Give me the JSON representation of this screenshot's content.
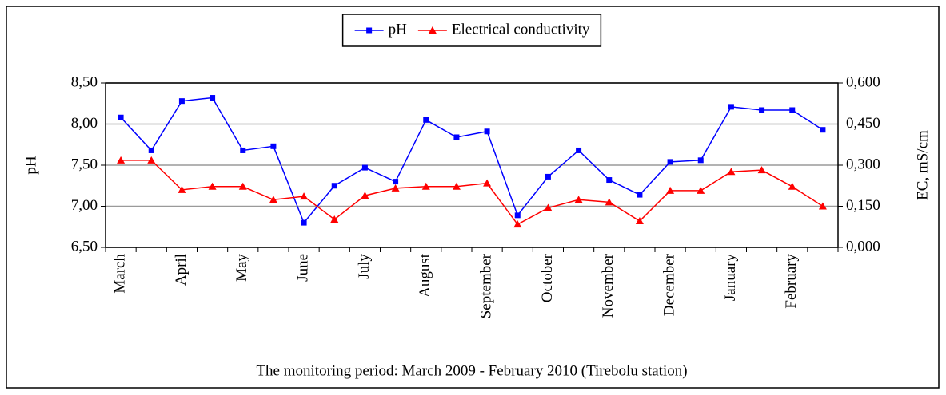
{
  "chart_data": {
    "type": "line",
    "xlabel": "The monitoring period: March 2009 - February 2010 (Tirebolu station)",
    "ylabel": "pH",
    "y2label": "EC, mS/cm",
    "categories": [
      "March",
      null,
      "April",
      null,
      "May",
      null,
      "June",
      null,
      "July",
      null,
      "August",
      null,
      "September",
      null,
      "October",
      null,
      "November",
      null,
      "December",
      null,
      "January",
      null,
      "February",
      null
    ],
    "series": [
      {
        "name": "pH",
        "color": "#0000ff",
        "marker": "square",
        "values": [
          8.08,
          7.68,
          8.28,
          8.32,
          7.68,
          7.73,
          6.8,
          7.25,
          7.47,
          7.3,
          8.05,
          7.84,
          7.91,
          6.89,
          7.36,
          7.68,
          7.32,
          7.14,
          7.54,
          7.56,
          8.21,
          8.17,
          8.17,
          7.93
        ]
      },
      {
        "name": "Electrical conductivity",
        "color": "#ff0000",
        "marker": "triangle",
        "axis": "y2",
        "values": [
          0.318,
          0.318,
          0.21,
          0.222,
          0.222,
          0.174,
          0.186,
          0.102,
          0.189,
          0.216,
          0.222,
          0.222,
          0.234,
          0.084,
          0.144,
          0.174,
          0.165,
          0.096,
          0.207,
          0.207,
          0.276,
          0.282,
          0.222,
          0.15
        ]
      }
    ],
    "ylim": [
      6.5,
      8.5
    ],
    "yticks": [
      {
        "value": 6.5,
        "label": "6,50"
      },
      {
        "value": 7.0,
        "label": "7,00"
      },
      {
        "value": 7.5,
        "label": "7,50"
      },
      {
        "value": 8.0,
        "label": "8,00"
      },
      {
        "value": 8.5,
        "label": "8,50"
      }
    ],
    "y2lim": [
      0,
      0.6
    ],
    "y2ticks": [
      {
        "value": 0,
        "label": "0,000"
      },
      {
        "value": 0.15,
        "label": "0,150"
      },
      {
        "value": 0.3,
        "label": "0,300"
      },
      {
        "value": 0.45,
        "label": "0,450"
      },
      {
        "value": 0.6,
        "label": "0,600"
      }
    ],
    "grid": true,
    "legend": "top"
  }
}
